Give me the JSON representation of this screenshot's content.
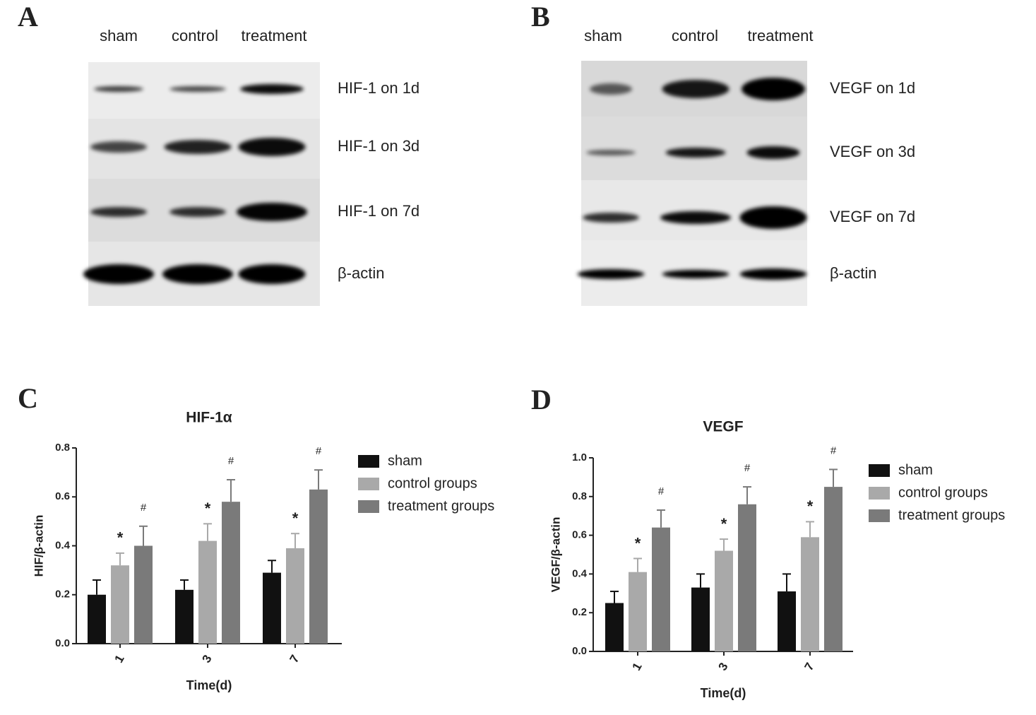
{
  "blots": [
    {
      "letter": "A",
      "lanes": [
        "sham",
        "control",
        "treatment"
      ],
      "rows": [
        "HIF-1 on 1d",
        "HIF-1 on 3d",
        "HIF-1 on 7d",
        "β-actin"
      ]
    },
    {
      "letter": "B",
      "lanes": [
        "sham",
        "control",
        "treatment"
      ],
      "rows": [
        "VEGF on 1d",
        "VEGF on 3d",
        "VEGF on 7d",
        "β-actin"
      ]
    }
  ],
  "chart_data": [
    {
      "type": "bar",
      "letter": "C",
      "title": "HIF-1α",
      "x_label": "Time(d)",
      "y_label": "HIF/β-actin",
      "categories": [
        "1",
        "3",
        "7"
      ],
      "series": [
        {
          "name": "sham",
          "color": "#111111",
          "values": [
            0.2,
            0.22,
            0.29
          ],
          "errors": [
            0.06,
            0.04,
            0.05
          ]
        },
        {
          "name": "control groups",
          "color": "#a9a9a9",
          "values": [
            0.32,
            0.42,
            0.39
          ],
          "errors": [
            0.05,
            0.07,
            0.06
          ],
          "annotations": [
            "*",
            "*",
            "*"
          ]
        },
        {
          "name": "treatment groups",
          "color": "#7a7a7a",
          "values": [
            0.4,
            0.58,
            0.63
          ],
          "errors": [
            0.08,
            0.09,
            0.08
          ],
          "annotations": [
            "#",
            "#",
            "#"
          ]
        }
      ],
      "ylim": [
        0,
        0.8
      ],
      "yticks": [
        {
          "value": 0,
          "label": "0.0"
        },
        0.2,
        0.4,
        0.6,
        0.8
      ]
    },
    {
      "type": "bar",
      "letter": "D",
      "title": "VEGF",
      "x_label": "Time(d)",
      "y_label": "VEGF/β-actin",
      "categories": [
        "1",
        "3",
        "7"
      ],
      "series": [
        {
          "name": "sham",
          "color": "#111111",
          "values": [
            0.25,
            0.33,
            0.31
          ],
          "errors": [
            0.06,
            0.07,
            0.09
          ]
        },
        {
          "name": "control groups",
          "color": "#a9a9a9",
          "values": [
            0.41,
            0.52,
            0.59
          ],
          "errors": [
            0.07,
            0.06,
            0.08
          ],
          "annotations": [
            "*",
            "*",
            "*"
          ]
        },
        {
          "name": "treatment groups",
          "color": "#7a7a7a",
          "values": [
            0.64,
            0.76,
            0.85
          ],
          "errors": [
            0.09,
            0.09,
            0.09
          ],
          "annotations": [
            "#",
            "#",
            "#"
          ]
        }
      ],
      "ylim": [
        0,
        1
      ],
      "yticks": [
        {
          "value": 0,
          "label": "0.0"
        },
        0.2,
        0.4,
        0.6,
        0.8,
        {
          "value": 1,
          "label": "1.0"
        }
      ]
    }
  ]
}
